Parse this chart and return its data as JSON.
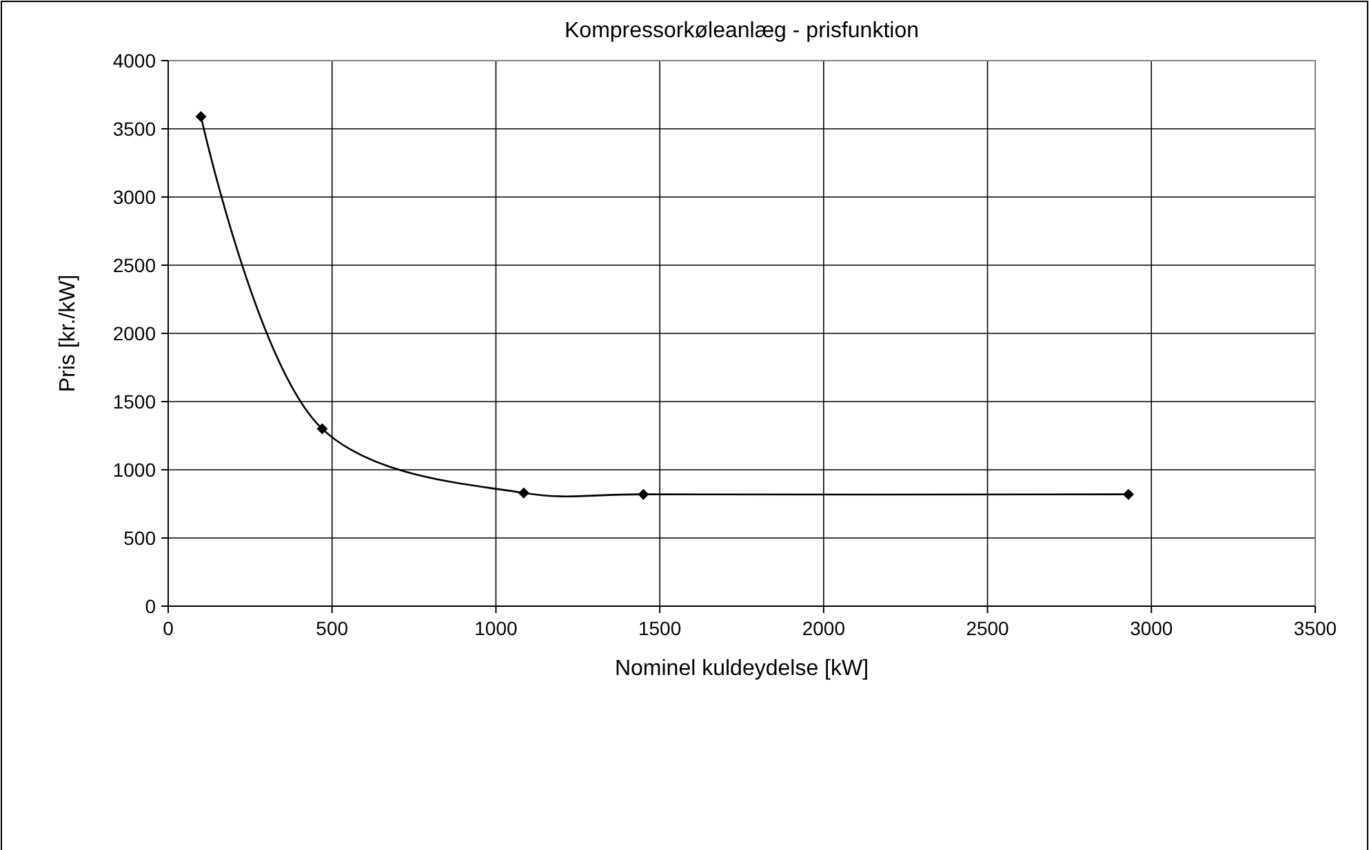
{
  "chart_data": {
    "type": "line",
    "title": "Kompressorkøleanlæg - prisfunktion",
    "xlabel": "Nominel kuldeydelse [kW]",
    "ylabel": "Pris [kr./kW]",
    "x": [
      100,
      470,
      1085,
      1450,
      2930
    ],
    "series": [
      {
        "color": "#000000",
        "values": [
          3590,
          1300,
          830,
          820,
          820
        ]
      }
    ],
    "xlim": [
      0,
      3500
    ],
    "xticks": [
      0,
      500,
      1000,
      1500,
      2000,
      2500,
      3000,
      3500
    ],
    "ylim": [
      0,
      4000
    ],
    "yticks": [
      0,
      500,
      1000,
      1500,
      2000,
      2500,
      3000,
      3500,
      4000
    ],
    "grid": true,
    "marker": "diamond",
    "line_style": "solid"
  }
}
